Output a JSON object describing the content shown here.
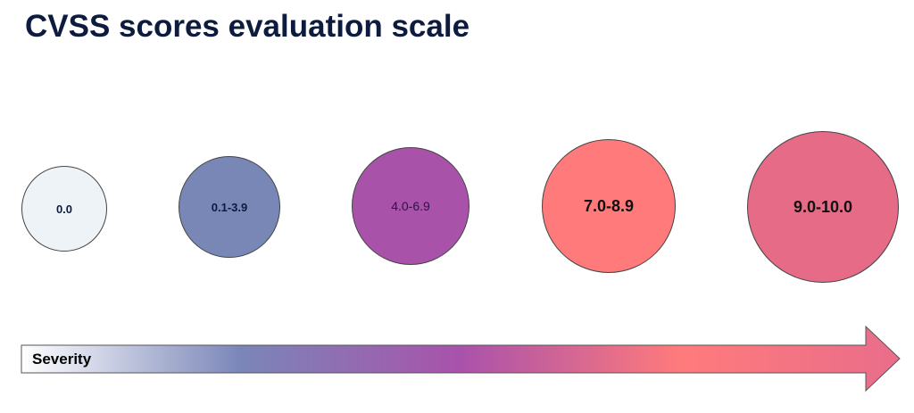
{
  "title": "CVSS scores evaluation scale",
  "severity_scale": {
    "levels": [
      {
        "range": "0.0",
        "fill": "#eef3f7",
        "text_color": "#0d1b3e"
      },
      {
        "range": "0.1-3.9",
        "fill": "#7887b6",
        "text_color": "#0d1b3e"
      },
      {
        "range": "4.0-6.9",
        "fill": "#a952a9",
        "text_color": "#2a1446"
      },
      {
        "range": "7.0-8.9",
        "fill": "#ff7a7a",
        "text_color": "#111111"
      },
      {
        "range": "9.0-10.0",
        "fill": "#e66b87",
        "text_color": "#111111"
      }
    ],
    "arrow": {
      "label": "Severity",
      "gradient": [
        "#ffffff",
        "#7a86b8",
        "#a952ab",
        "#ff7b7b",
        "#e96d8b"
      ]
    }
  }
}
